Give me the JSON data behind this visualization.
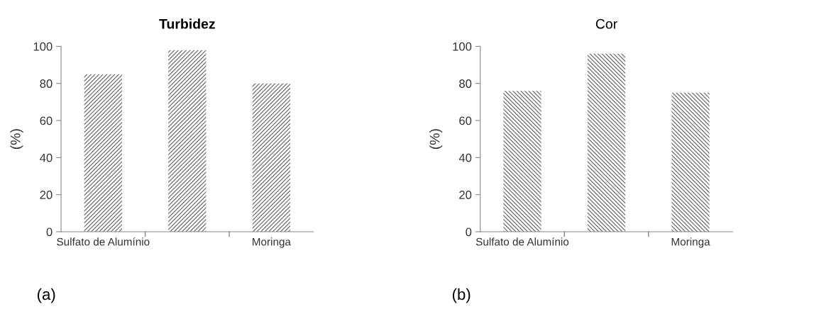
{
  "chart_data": [
    {
      "type": "bar",
      "title": "Turbidez",
      "ylabel": "(%)",
      "categories": [
        "Sulfato de Alumínio",
        null,
        "Moringa"
      ],
      "values": [
        85,
        98,
        80
      ],
      "color": "#7a7a7a",
      "ylim": [
        0,
        100
      ],
      "yticks": [
        0,
        20,
        40,
        60,
        80,
        100
      ],
      "grid": false,
      "annotations": [
        "(a)"
      ]
    },
    {
      "type": "bar",
      "title": "Cor",
      "ylabel": "(%)",
      "categories": [
        "Sulfato de Alumínio",
        null,
        "Moringa"
      ],
      "values": [
        76,
        96,
        75
      ],
      "color": "#7a7a7a",
      "ylim": [
        0,
        100
      ],
      "yticks": [
        0,
        20,
        40,
        60,
        80,
        100
      ],
      "grid": false,
      "annotations": [
        "(b)"
      ]
    }
  ]
}
